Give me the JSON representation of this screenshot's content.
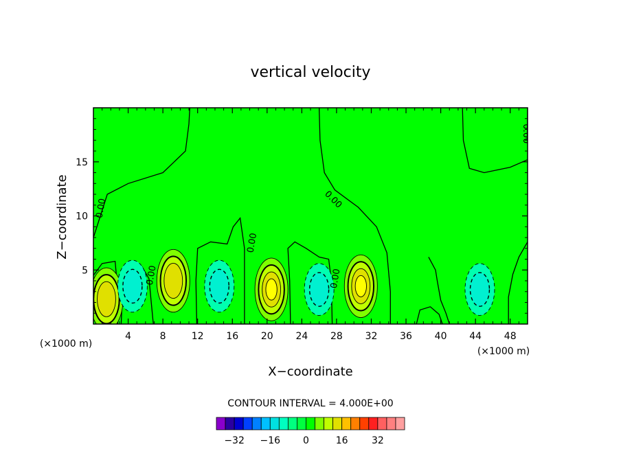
{
  "chart_data": {
    "type": "contour",
    "title": "vertical velocity",
    "xlabel": "X−coordinate",
    "ylabel": "Z−coordinate",
    "xunit_left": "(×1000 m)",
    "xunit_right": "(×1000 m)",
    "xlim": [
      0,
      50
    ],
    "ylim": [
      0,
      20
    ],
    "x_ticks": [
      4,
      8,
      12,
      16,
      20,
      24,
      28,
      32,
      36,
      40,
      44,
      48
    ],
    "x_tick_labels": [
      "4",
      "8",
      "12",
      "16",
      "20",
      "24",
      "28",
      "32",
      "36",
      "40",
      "44",
      "48"
    ],
    "y_ticks": [
      5,
      10,
      15
    ],
    "y_tick_labels": [
      "5",
      "10",
      "15"
    ],
    "background_color": "#00ff00",
    "contour_labels": [
      "0.00",
      "0.00",
      "0.00",
      "0.00",
      "0.00",
      "0.00",
      "0.00"
    ],
    "updrafts": [
      {
        "x": 1.5,
        "z": 2.3,
        "peak": 12
      },
      {
        "x": 9.2,
        "z": 4.0,
        "peak": 12
      },
      {
        "x": 20.5,
        "z": 3.2,
        "peak": 16
      },
      {
        "x": 30.8,
        "z": 3.5,
        "peak": 16
      }
    ],
    "downdrafts": [
      {
        "x": 4.5,
        "z": 3.5,
        "peak": -8
      },
      {
        "x": 14.5,
        "z": 3.5,
        "peak": -8
      },
      {
        "x": 26,
        "z": 3.2,
        "peak": -8
      },
      {
        "x": 44.5,
        "z": 3.2,
        "peak": -8
      }
    ],
    "contour_interval_text": "CONTOUR INTERVAL = 4.000E+00",
    "colorbar": {
      "colors": [
        "#8a00cc",
        "#2a00a0",
        "#0000d0",
        "#0040ff",
        "#0080ff",
        "#00c0ff",
        "#00e0e0",
        "#00ffc0",
        "#00ff80",
        "#00ff40",
        "#00ff00",
        "#80ff00",
        "#c0ff00",
        "#e0e000",
        "#ffc000",
        "#ff8000",
        "#ff4000",
        "#ff2020",
        "#ff6060",
        "#ff8080",
        "#ffa0a0"
      ],
      "tick_labels": [
        "−32",
        "−16",
        "0",
        "16",
        "32"
      ],
      "tick_values": [
        -32,
        -16,
        0,
        16,
        32
      ],
      "range": [
        -40,
        44
      ]
    }
  }
}
